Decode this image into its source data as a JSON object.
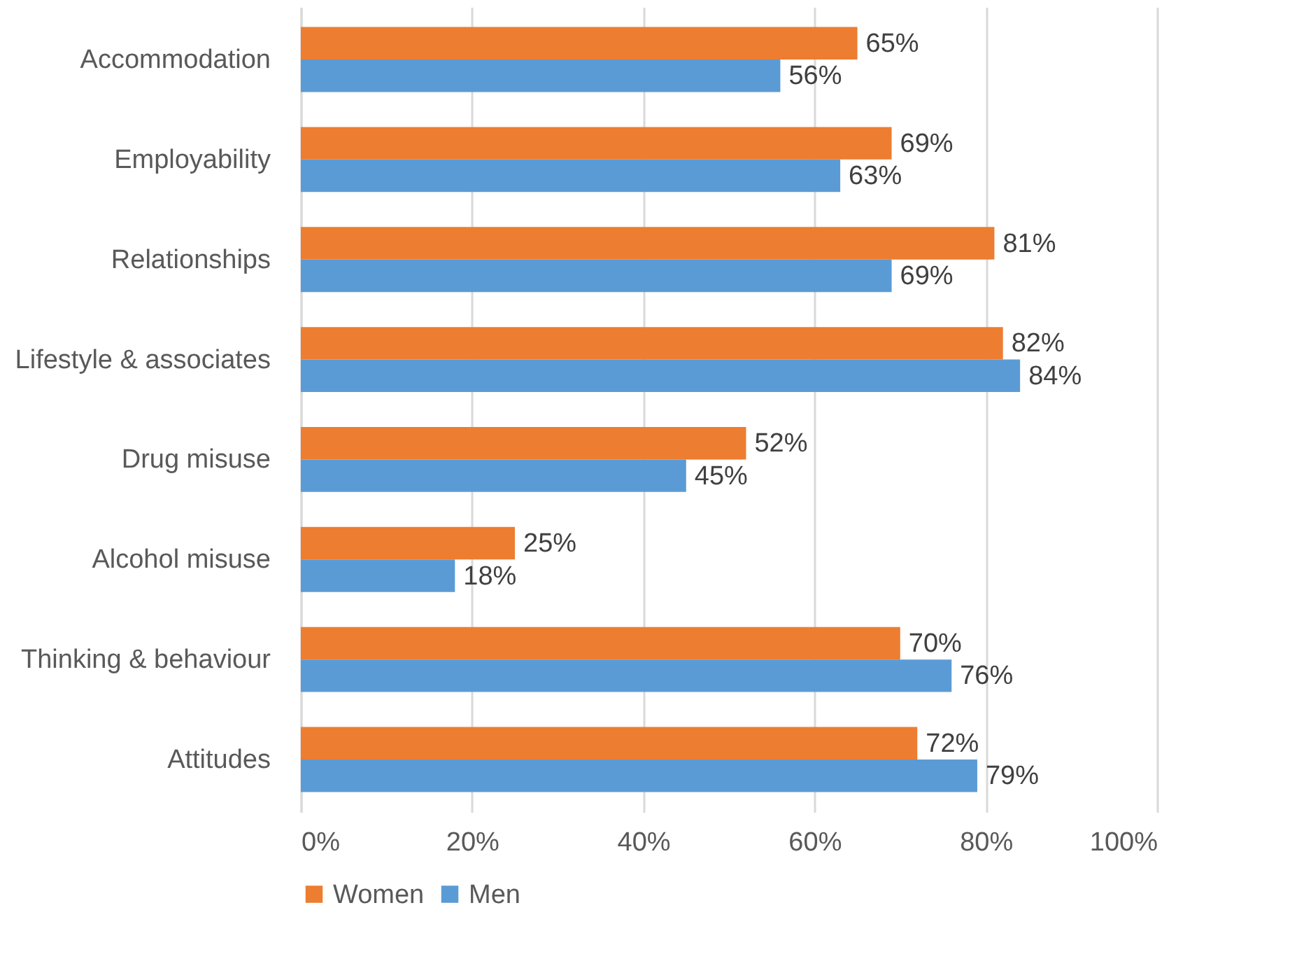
{
  "chart_data": {
    "type": "bar",
    "orientation": "horizontal",
    "categories": [
      "Accommodation",
      "Employability",
      "Relationships",
      "Lifestyle & associates",
      "Drug misuse",
      "Alcohol misuse",
      "Thinking & behaviour",
      "Attitudes"
    ],
    "series": [
      {
        "name": "Women",
        "color": "#ed7d31",
        "values": [
          65,
          69,
          81,
          82,
          52,
          25,
          70,
          72
        ],
        "value_labels": [
          "65%",
          "69%",
          "81%",
          "82%",
          "52%",
          "25%",
          "70%",
          "72%"
        ]
      },
      {
        "name": "Men",
        "color": "#5b9bd5",
        "values": [
          56,
          63,
          69,
          84,
          45,
          18,
          76,
          79
        ],
        "value_labels": [
          "56%",
          "63%",
          "69%",
          "84%",
          "45%",
          "18%",
          "76%",
          "79%"
        ]
      }
    ],
    "xlim": [
      0,
      100
    ],
    "xticks": [
      {
        "value": 0,
        "label": "0%"
      },
      {
        "value": 20,
        "label": "20%"
      },
      {
        "value": 40,
        "label": "40%"
      },
      {
        "value": 60,
        "label": "60%"
      },
      {
        "value": 80,
        "label": "80%"
      },
      {
        "value": 100,
        "label": "100%"
      }
    ],
    "grid": "x",
    "legend": "bottom"
  }
}
